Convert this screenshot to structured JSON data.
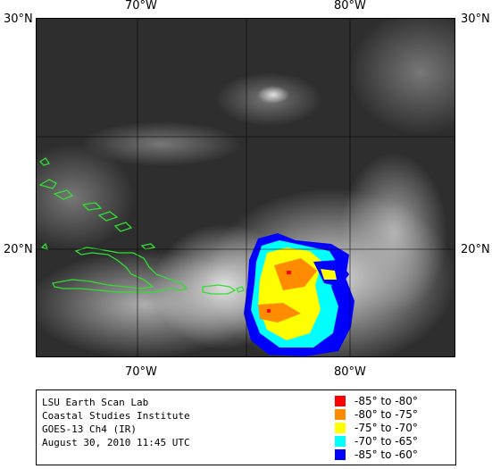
{
  "map": {
    "lat_labels": [
      "30°N",
      "20°N"
    ],
    "lon_labels": [
      "70°W",
      "80°W"
    ]
  },
  "credit": {
    "lines": [
      "LSU Earth Scan Lab",
      "Coastal Studies Institute",
      "GOES-13 Ch4 (IR)",
      "August 30, 2010 11:45 UTC"
    ]
  },
  "legend": [
    {
      "label": "-85° to -80°",
      "color": "#ff0000"
    },
    {
      "label": "-80° to -75°",
      "color": "#ff8c00"
    },
    {
      "label": "-75° to -70°",
      "color": "#ffff00"
    },
    {
      "label": "-70° to -65°",
      "color": "#00ffff"
    },
    {
      "label": "-85° to -60°",
      "color": "#0000ff"
    }
  ],
  "colors": {
    "coastline": "#33dd33",
    "grid": "#000000",
    "background_cloud": "#2b2b2b"
  }
}
